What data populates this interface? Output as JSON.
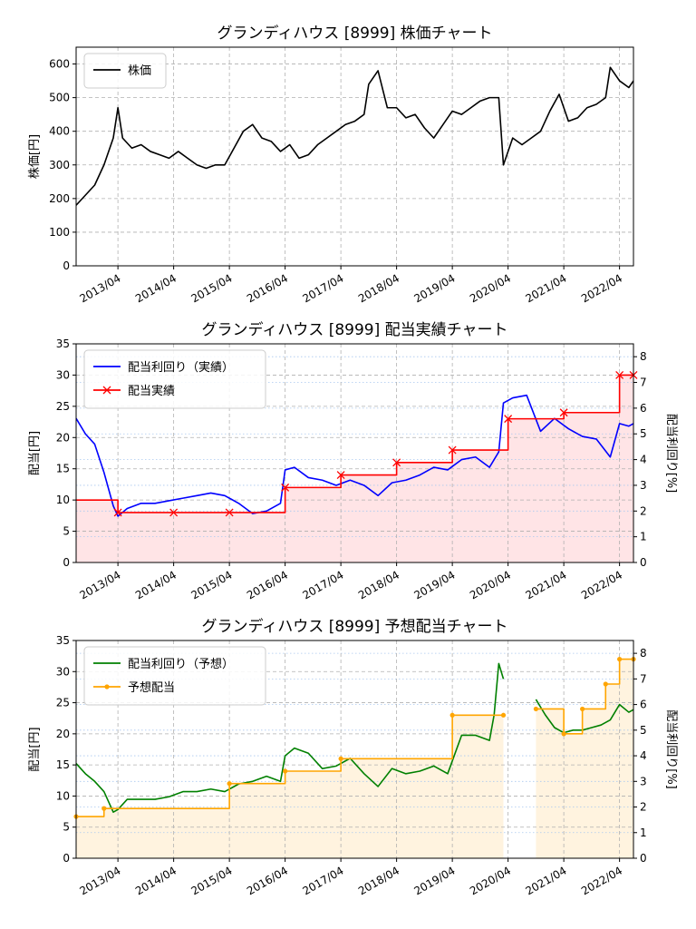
{
  "chart_data": [
    {
      "type": "line",
      "title": "グランディハウス [8999]  株価チャート",
      "xlabel": "",
      "ylabel": "株価[円]",
      "x_ticks": [
        "2013/04",
        "2014/04",
        "2015/04",
        "2016/04",
        "2017/04",
        "2018/04",
        "2019/04",
        "2020/04",
        "2021/04",
        "2022/04"
      ],
      "x_range": [
        "2012/07",
        "2022/07"
      ],
      "ylim": [
        0,
        650
      ],
      "y_ticks": [
        0,
        100,
        200,
        300,
        400,
        500,
        600
      ],
      "grid": true,
      "legend": "top-left",
      "series": [
        {
          "name": "株価",
          "color": "#000000",
          "x": [
            "2012/07",
            "2012/09",
            "2012/11",
            "2013/01",
            "2013/03",
            "2013/04",
            "2013/05",
            "2013/07",
            "2013/09",
            "2013/11",
            "2014/01",
            "2014/03",
            "2014/05",
            "2014/07",
            "2014/09",
            "2014/11",
            "2015/01",
            "2015/03",
            "2015/05",
            "2015/07",
            "2015/09",
            "2015/11",
            "2016/01",
            "2016/03",
            "2016/05",
            "2016/07",
            "2016/09",
            "2016/11",
            "2017/01",
            "2017/03",
            "2017/05",
            "2017/07",
            "2017/09",
            "2017/10",
            "2017/12",
            "2018/02",
            "2018/04",
            "2018/06",
            "2018/08",
            "2018/10",
            "2018/12",
            "2019/02",
            "2019/04",
            "2019/06",
            "2019/08",
            "2019/10",
            "2019/12",
            "2020/02",
            "2020/03",
            "2020/05",
            "2020/07",
            "2020/09",
            "2020/11",
            "2021/01",
            "2021/03",
            "2021/05",
            "2021/07",
            "2021/09",
            "2021/11",
            "2022/01",
            "2022/02",
            "2022/04",
            "2022/06",
            "2022/07"
          ],
          "y": [
            180,
            210,
            240,
            300,
            380,
            470,
            380,
            350,
            360,
            340,
            330,
            320,
            340,
            320,
            300,
            290,
            300,
            300,
            350,
            400,
            420,
            380,
            370,
            340,
            360,
            320,
            330,
            360,
            380,
            400,
            420,
            430,
            450,
            540,
            580,
            470,
            470,
            440,
            450,
            410,
            380,
            420,
            460,
            450,
            470,
            490,
            500,
            500,
            300,
            380,
            360,
            380,
            400,
            460,
            510,
            430,
            440,
            470,
            480,
            500,
            590,
            550,
            530,
            550
          ]
        }
      ]
    },
    {
      "type": "line",
      "title": "グランディハウス [8999]  配当実績チャート",
      "xlabel": "",
      "ylabel": "配当[円]",
      "ylabel_right": "配当利回り[%]",
      "x_ticks": [
        "2013/04",
        "2014/04",
        "2015/04",
        "2016/04",
        "2017/04",
        "2018/04",
        "2019/04",
        "2020/04",
        "2021/04",
        "2022/04"
      ],
      "x_range": [
        "2012/07",
        "2022/07"
      ],
      "ylim": [
        0,
        35
      ],
      "y_ticks": [
        0,
        5,
        10,
        15,
        20,
        25,
        30,
        35
      ],
      "ylim_right": [
        0,
        8.5
      ],
      "y_ticks_right": [
        0,
        1,
        2,
        3,
        4,
        5,
        6,
        7,
        8
      ],
      "grid": true,
      "legend": "top-left",
      "series": [
        {
          "name": "配当利回り（実績）",
          "color": "#0000ff",
          "axis": "right",
          "x": [
            "2012/07",
            "2012/09",
            "2012/11",
            "2013/01",
            "2013/03",
            "2013/04",
            "2013/06",
            "2013/09",
            "2013/12",
            "2014/03",
            "2014/06",
            "2014/09",
            "2014/12",
            "2015/03",
            "2015/06",
            "2015/09",
            "2015/12",
            "2016/03",
            "2016/04",
            "2016/06",
            "2016/09",
            "2016/12",
            "2017/03",
            "2017/06",
            "2017/09",
            "2017/12",
            "2018/03",
            "2018/06",
            "2018/09",
            "2018/12",
            "2019/03",
            "2019/06",
            "2019/09",
            "2019/12",
            "2020/02",
            "2020/03",
            "2020/05",
            "2020/08",
            "2020/11",
            "2021/02",
            "2021/05",
            "2021/08",
            "2021/11",
            "2022/02",
            "2022/04",
            "2022/06",
            "2022/07"
          ],
          "y": [
            5.6,
            5.0,
            4.6,
            3.5,
            2.2,
            1.8,
            2.1,
            2.3,
            2.3,
            2.4,
            2.5,
            2.6,
            2.7,
            2.6,
            2.3,
            1.9,
            2.0,
            2.3,
            3.6,
            3.7,
            3.3,
            3.2,
            3.0,
            3.2,
            3.0,
            2.6,
            3.1,
            3.2,
            3.4,
            3.7,
            3.6,
            4.0,
            4.1,
            3.7,
            4.3,
            6.2,
            6.4,
            6.5,
            5.1,
            5.6,
            5.2,
            4.9,
            4.8,
            4.1,
            5.4,
            5.3,
            5.4
          ]
        },
        {
          "name": "配当実績",
          "color": "#ff0000",
          "axis": "left",
          "step": true,
          "x": [
            "2012/07",
            "2013/04",
            "2014/04",
            "2015/04",
            "2016/04",
            "2017/04",
            "2018/04",
            "2019/04",
            "2020/04",
            "2021/04",
            "2022/04",
            "2022/07"
          ],
          "y": [
            10,
            8,
            8,
            8,
            12,
            14,
            16,
            18,
            23,
            24,
            30,
            30
          ],
          "markers": [
            "2013/04",
            "2014/04",
            "2015/04",
            "2016/04",
            "2017/04",
            "2018/04",
            "2019/04",
            "2020/04",
            "2021/04",
            "2022/04",
            "2022/07"
          ]
        }
      ]
    },
    {
      "type": "line",
      "title": "グランディハウス [8999]  予想配当チャート",
      "xlabel": "",
      "ylabel": "配当[円]",
      "ylabel_right": "配当利回り[%]",
      "x_ticks": [
        "2013/04",
        "2014/04",
        "2015/04",
        "2016/04",
        "2017/04",
        "2018/04",
        "2019/04",
        "2020/04",
        "2021/04",
        "2022/04"
      ],
      "x_range": [
        "2012/07",
        "2022/07"
      ],
      "ylim": [
        0,
        35
      ],
      "y_ticks": [
        0,
        5,
        10,
        15,
        20,
        25,
        30,
        35
      ],
      "ylim_right": [
        0,
        8.5
      ],
      "y_ticks_right": [
        0,
        1,
        2,
        3,
        4,
        5,
        6,
        7,
        8
      ],
      "grid": true,
      "legend": "top-left",
      "series": [
        {
          "name": "配当利回り（予想）",
          "color": "#008000",
          "axis": "right",
          "segments": [
            {
              "x": [
                "2012/07",
                "2012/09",
                "2012/11",
                "2013/01",
                "2013/03",
                "2013/04",
                "2013/06",
                "2013/09",
                "2013/12",
                "2014/03",
                "2014/06",
                "2014/09",
                "2014/12",
                "2015/03",
                "2015/06",
                "2015/09",
                "2015/12",
                "2016/03",
                "2016/04",
                "2016/06",
                "2016/09",
                "2016/12",
                "2017/03",
                "2017/06",
                "2017/09",
                "2017/12",
                "2018/03",
                "2018/06",
                "2018/09",
                "2018/12",
                "2019/03",
                "2019/06",
                "2019/09",
                "2019/12",
                "2020/01",
                "2020/02",
                "2020/03"
              ],
              "y": [
                3.7,
                3.3,
                3.0,
                2.6,
                1.8,
                1.9,
                2.3,
                2.3,
                2.3,
                2.4,
                2.6,
                2.6,
                2.7,
                2.6,
                2.9,
                3.0,
                3.2,
                3.0,
                4.0,
                4.3,
                4.1,
                3.5,
                3.6,
                3.9,
                3.3,
                2.8,
                3.5,
                3.3,
                3.4,
                3.6,
                3.3,
                4.8,
                4.8,
                4.6,
                5.6,
                7.6,
                7.0
              ]
            },
            {
              "x": [
                "2020/10",
                "2020/12",
                "2021/02",
                "2021/04",
                "2021/06",
                "2021/08",
                "2021/10",
                "2021/12",
                "2022/02",
                "2022/04",
                "2022/06",
                "2022/07"
              ],
              "y": [
                6.2,
                5.6,
                5.1,
                4.9,
                5.0,
                5.0,
                5.1,
                5.2,
                5.4,
                6.0,
                5.7,
                5.8
              ]
            }
          ]
        },
        {
          "name": "予想配当",
          "color": "#ffa500",
          "axis": "left",
          "step": true,
          "segments": [
            {
              "x": [
                "2012/07",
                "2013/01",
                "2015/04",
                "2016/04",
                "2017/04",
                "2019/04",
                "2020/03"
              ],
              "y": [
                6.7,
                8,
                12,
                14,
                16,
                23,
                23
              ]
            },
            {
              "x": [
                "2020/10",
                "2021/04",
                "2021/08",
                "2022/01",
                "2022/04",
                "2022/07"
              ],
              "y": [
                24,
                20,
                24,
                28,
                32,
                32
              ]
            }
          ]
        }
      ]
    }
  ]
}
